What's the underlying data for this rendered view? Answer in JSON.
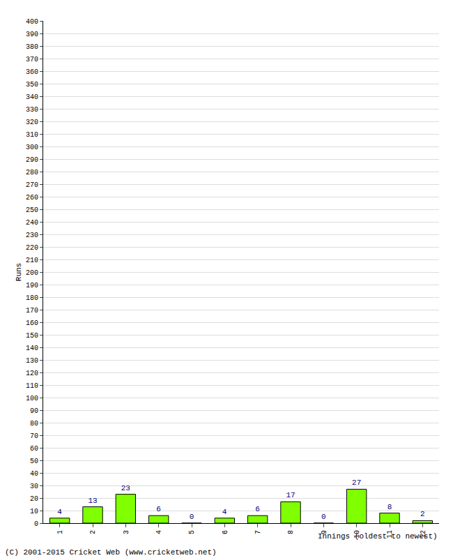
{
  "chart_data": {
    "type": "bar",
    "xlabel": "Innings (oldest to newest)",
    "ylabel": "Runs",
    "annotations": [
      "(C) 2001-2015 Cricket Web (www.cricketweb.net)"
    ],
    "categories": [
      "1",
      "2",
      "3",
      "4",
      "5",
      "6",
      "7",
      "8",
      "9",
      "10",
      "11",
      "12"
    ],
    "values": [
      4,
      13,
      23,
      6,
      0,
      4,
      6,
      17,
      0,
      27,
      8,
      2
    ],
    "color": "#80ff00",
    "ylim": [
      0,
      400
    ],
    "yticks": [
      0,
      10,
      20,
      30,
      40,
      50,
      60,
      70,
      80,
      90,
      100,
      110,
      120,
      130,
      140,
      150,
      160,
      170,
      180,
      190,
      200,
      210,
      220,
      230,
      240,
      250,
      260,
      270,
      280,
      290,
      300,
      310,
      320,
      330,
      340,
      350,
      360,
      370,
      380,
      390,
      400
    ],
    "grid": true,
    "data_labels": true
  }
}
